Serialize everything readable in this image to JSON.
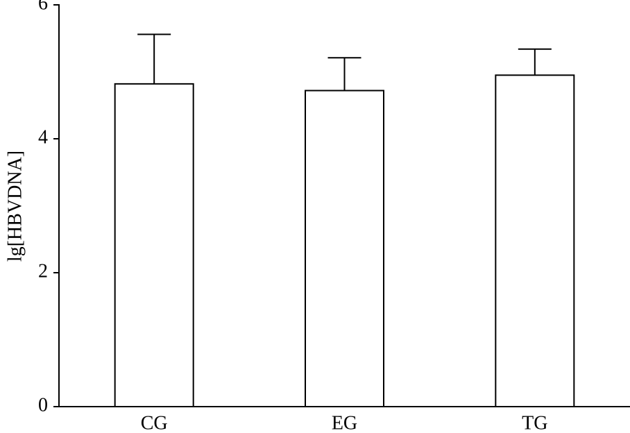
{
  "chart_data": {
    "type": "bar",
    "y_label": "lg[HBVDNA]",
    "categories": [
      "CG",
      "EG",
      "TG"
    ],
    "values": [
      4.82,
      4.72,
      4.95
    ],
    "errors": [
      0.74,
      0.49,
      0.39
    ],
    "color": "#ffffff",
    "ylim": [
      0,
      6
    ],
    "yticks": [
      0,
      2,
      4,
      6
    ],
    "grid": false
  }
}
